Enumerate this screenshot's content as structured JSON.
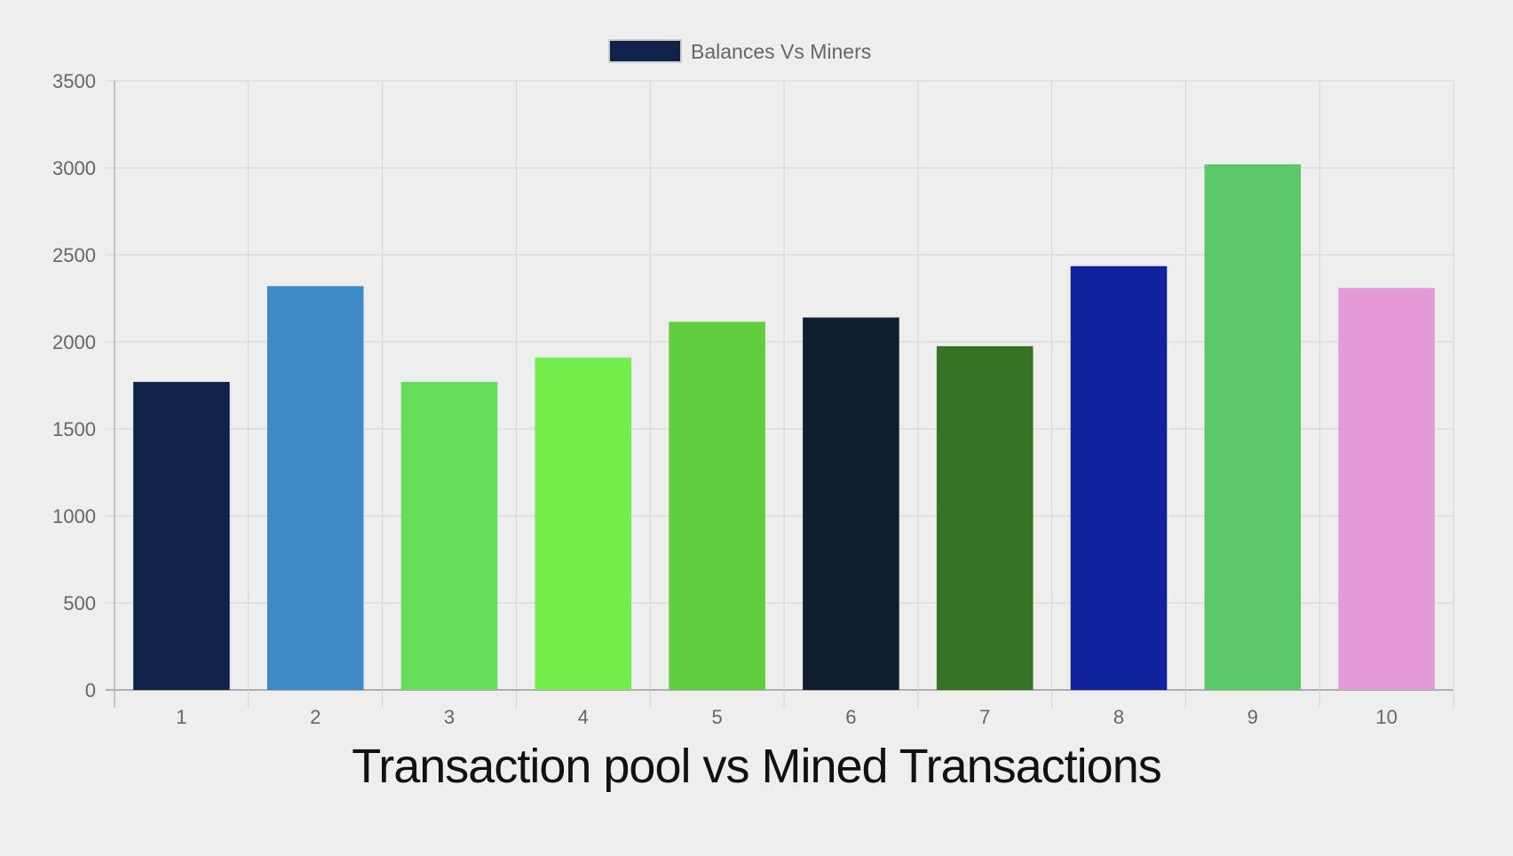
{
  "chart_data": {
    "type": "bar",
    "legend": {
      "label": "Balances Vs Miners",
      "swatch_color": "#0f2248",
      "position": "top-center"
    },
    "categories": [
      "1",
      "2",
      "3",
      "4",
      "5",
      "6",
      "7",
      "8",
      "9",
      "10"
    ],
    "series": [
      {
        "name": "Balances Vs Miners",
        "values": [
          1770,
          2320,
          1770,
          1910,
          2115,
          2140,
          1975,
          2435,
          3020,
          2310
        ],
        "colors": [
          "#0f2248",
          "#3d8ac4",
          "#66dd5a",
          "#73ee4d",
          "#5fcd3e",
          "#0f1f2f",
          "#347323",
          "#0f229b",
          "#5dc869",
          "#e39ad6"
        ]
      }
    ],
    "ylim": [
      0,
      3500
    ],
    "y_ticks": [
      "0",
      "500",
      "1000",
      "1500",
      "2000",
      "2500",
      "3000",
      "3500"
    ],
    "grid": true,
    "caption": "Transaction pool vs Mined Transactions"
  }
}
